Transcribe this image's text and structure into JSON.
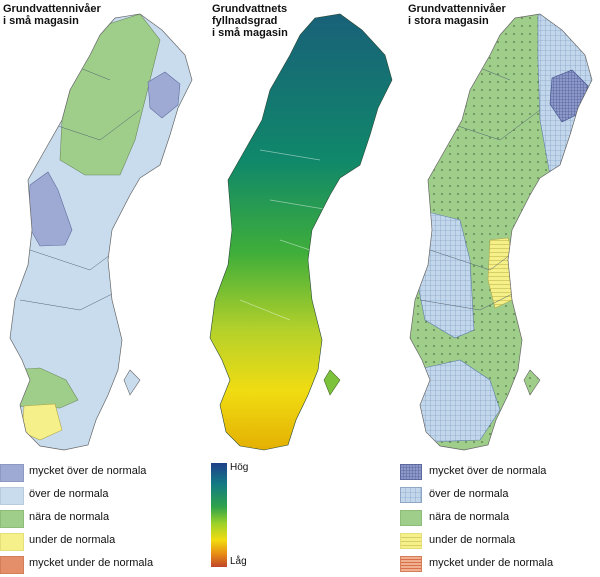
{
  "panels": [
    {
      "title_line1": "Grundvattennivåer",
      "title_line2": "i små magasin",
      "title_line3": ""
    },
    {
      "title_line1": "Grundvattnets",
      "title_line2": "fyllnadsgrad",
      "title_line3": "i små magasin"
    },
    {
      "title_line1": "Grundvattennivåer",
      "title_line2": "i stora magasin",
      "title_line3": ""
    }
  ],
  "legend_small": [
    {
      "label": "mycket över de normala",
      "color": "#9eaad3"
    },
    {
      "label": "över de normala",
      "color": "#c8dcee"
    },
    {
      "label": "nära de normala",
      "color": "#9fcd8a"
    },
    {
      "label": "under de normala",
      "color": "#f5f08a"
    },
    {
      "label": "mycket under de normala",
      "color": "#e58e6a"
    }
  ],
  "legend_large": [
    {
      "label": "mycket över de normala",
      "color": "#8c98c8"
    },
    {
      "label": "över de normala",
      "color": "#c3d7ec"
    },
    {
      "label": "nära de normala",
      "color": "#9fcd8a"
    },
    {
      "label": "under de normala",
      "color": "#f5f08a"
    },
    {
      "label": "mycket under de normala",
      "color": "#e58e6a"
    }
  ],
  "colorbar": {
    "high": "Hög",
    "low": "Låg"
  }
}
